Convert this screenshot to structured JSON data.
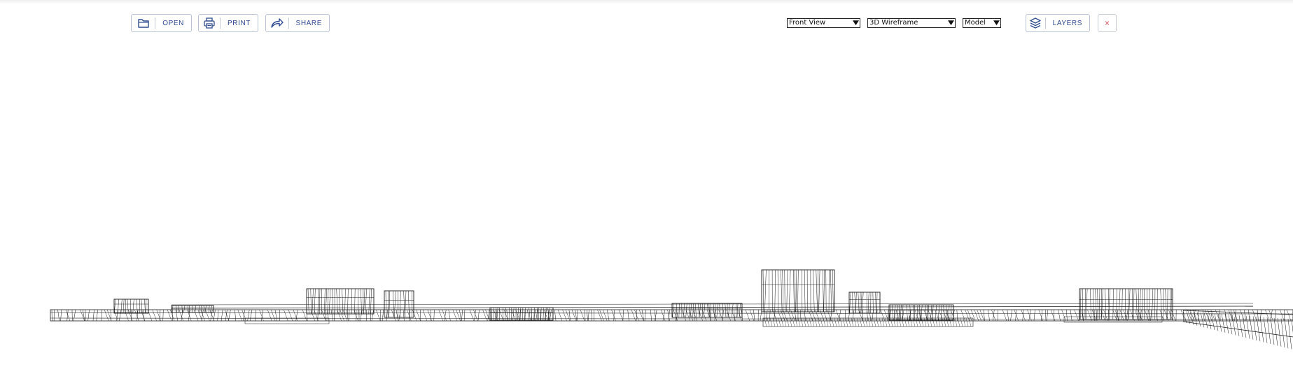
{
  "toolbar": {
    "open_label": "OPEN",
    "print_label": "PRINT",
    "share_label": "SHARE",
    "layers_label": "LAYERS",
    "close_label": "×",
    "icons": [
      "folder-icon",
      "printer-icon",
      "share-arrow-icon",
      "layers-icon",
      "close-icon"
    ]
  },
  "view_controls": {
    "view_select": "Front View",
    "style_select": "3D Wireframe",
    "space_select": "Model"
  },
  "colors": {
    "accent": "#2f4b8f",
    "button_border": "#b9c3d6",
    "close": "#d4505a",
    "wireframe": "#1a1a1a"
  }
}
